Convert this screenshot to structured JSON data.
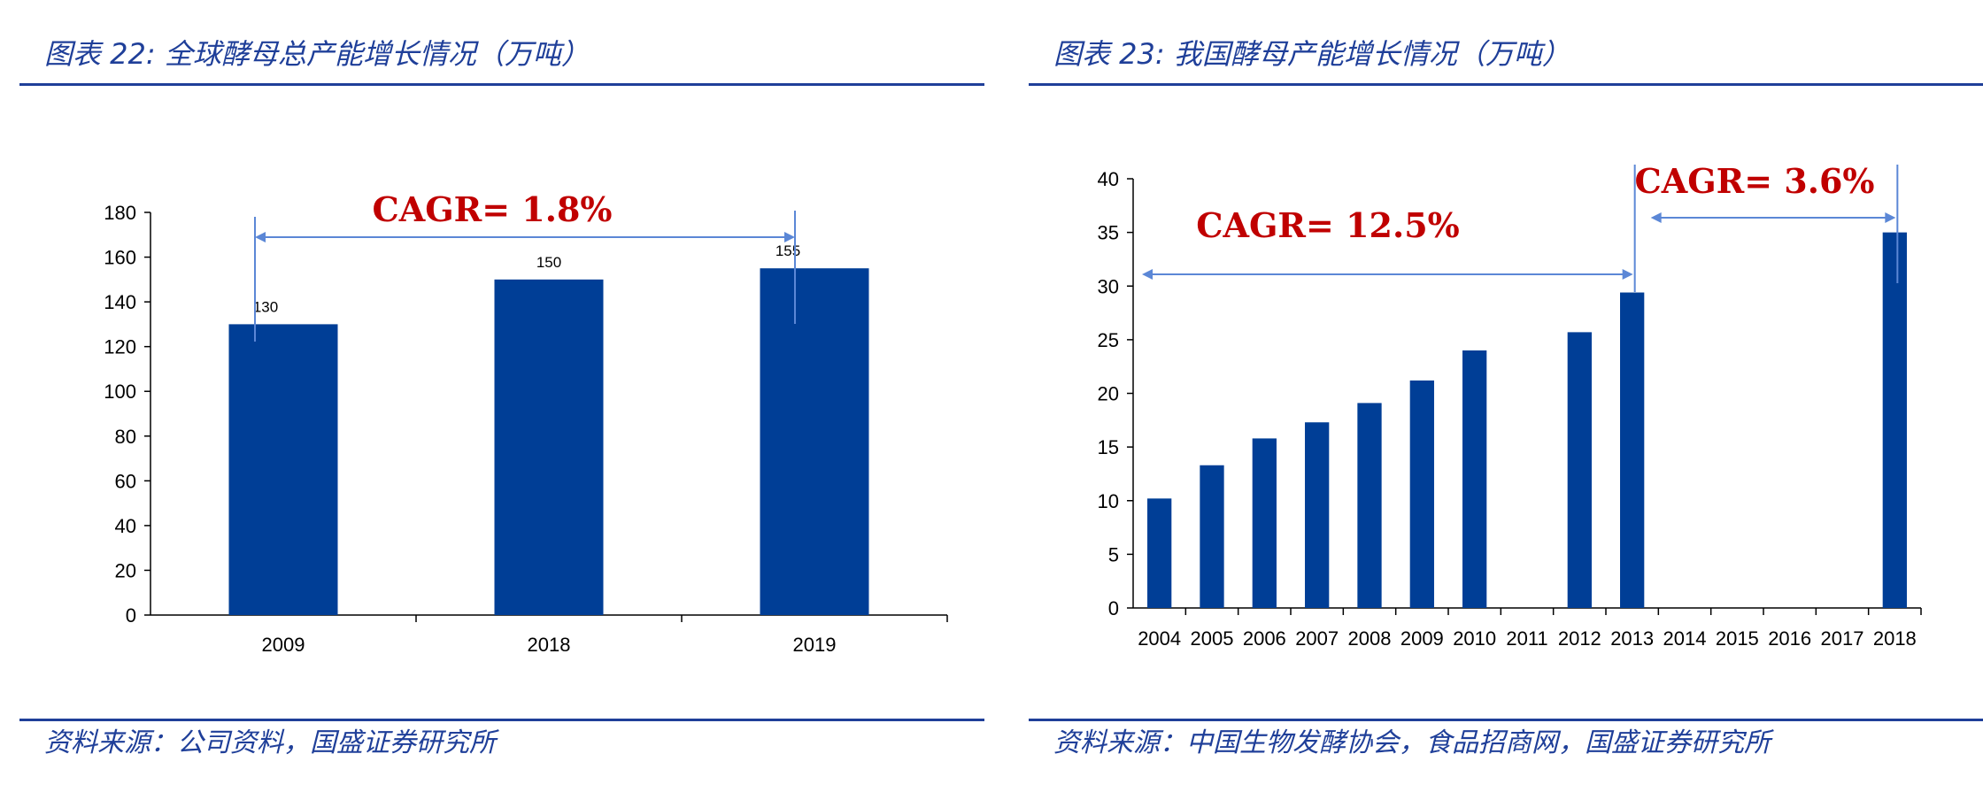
{
  "left": {
    "figure_title": "图表 22:  全球酵母总产能增长情况（万吨）",
    "source": "资料来源：公司资料，国盛证券研究所"
  },
  "right": {
    "figure_title": "图表 23:  我国酵母产能增长情况（万吨）",
    "source": "资料来源：中国生物发酵协会，食品招商网，国盛证券研究所"
  },
  "colors": {
    "bar": "#003e96",
    "accent": "#1f3f99",
    "cagr": "#c00000",
    "arrow": "#5b87d6"
  },
  "chart_data": [
    {
      "type": "bar",
      "title": "全球酵母总产能增长情况（万吨）",
      "categories": [
        "2009",
        "2018",
        "2019"
      ],
      "values": [
        130,
        150,
        155
      ],
      "data_labels": [
        "130",
        "150",
        "155"
      ],
      "yticks": [
        "0",
        "20",
        "40",
        "60",
        "80",
        "100",
        "120",
        "140",
        "160",
        "180"
      ],
      "ylim": [
        0,
        180
      ],
      "grid": false,
      "legend": "none",
      "annotations": [
        {
          "text": "CAGR= 1.8%",
          "from": "2009",
          "to": "2019"
        }
      ]
    },
    {
      "type": "bar",
      "title": "我国酵母产能增长情况（万吨）",
      "categories": [
        "2004",
        "2005",
        "2006",
        "2007",
        "2008",
        "2009",
        "2010",
        "2011",
        "2012",
        "2013",
        "2014",
        "2015",
        "2016",
        "2017",
        "2018"
      ],
      "values": [
        10.2,
        13.3,
        15.8,
        17.3,
        19.1,
        21.2,
        24.0,
        null,
        25.7,
        29.4,
        null,
        null,
        null,
        null,
        35.0
      ],
      "yticks": [
        "0",
        "5",
        "10",
        "15",
        "20",
        "25",
        "30",
        "35",
        "40"
      ],
      "ylim": [
        0,
        40
      ],
      "grid": false,
      "legend": "none",
      "annotations": [
        {
          "text": "CAGR= 12.5%",
          "from": "2004",
          "to": "2013"
        },
        {
          "text": "CAGR= 3.6%",
          "from": "2013",
          "to": "2018"
        }
      ]
    }
  ]
}
